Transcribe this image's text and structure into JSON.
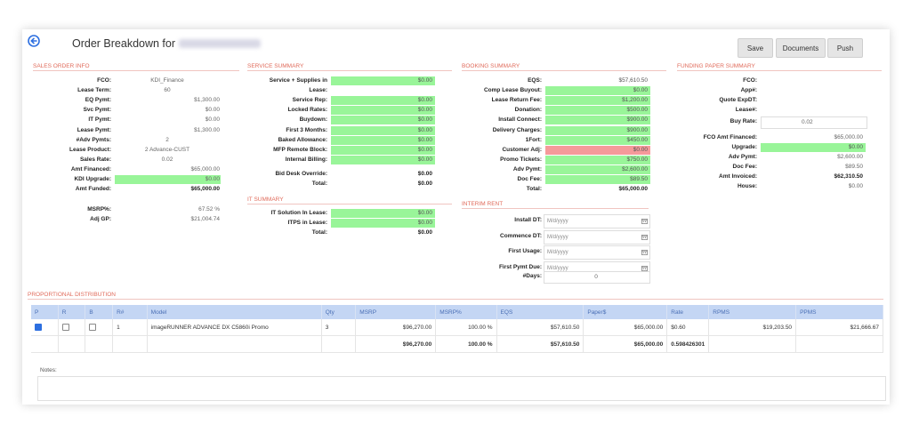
{
  "header": {
    "title": "Order Breakdown for",
    "save": "Save",
    "documents": "Documents",
    "push": "Push"
  },
  "sales_order": {
    "title": "SALES ORDER INFO",
    "rows": [
      {
        "label": "FCO:",
        "value": "KDI_Finance"
      },
      {
        "label": "Lease Term:",
        "value": "60"
      },
      {
        "label": "EQ Pymt:",
        "value": "$1,300.00"
      },
      {
        "label": "Svc Pymt:",
        "value": "$0.00"
      },
      {
        "label": "IT Pymt:",
        "value": "$0.00"
      },
      {
        "label": "Lease Pymt:",
        "value": "$1,300.00"
      },
      {
        "label": "#Adv Pymts:",
        "value": "2"
      },
      {
        "label": "Lease Product:",
        "value": "2 Advance-CUST"
      },
      {
        "label": "Sales Rate:",
        "value": "0.02"
      },
      {
        "label": "Amt Financed:",
        "value": "$65,000.00"
      },
      {
        "label": "KDI Upgrade:",
        "value": "$0.00"
      },
      {
        "label": "Amt Funded:",
        "value": "$65,000.00"
      }
    ],
    "msrp_label": "MSRP%:",
    "msrp_value": "67.52 %",
    "adjgp_label": "Adj GP:",
    "adjgp_value": "$21,004.74"
  },
  "service": {
    "title": "SERVICE SUMMARY",
    "rows": [
      {
        "label": "Service + Supplies in",
        "value": "$0.00"
      },
      {
        "label": "Lease:",
        "value": ""
      },
      {
        "label": "Service Rep:",
        "value": "$0.00"
      },
      {
        "label": "Locked Rates:",
        "value": "$0.00"
      },
      {
        "label": "Buydown:",
        "value": "$0.00"
      },
      {
        "label": "First 3 Months:",
        "value": "$0.00"
      },
      {
        "label": "Baked Allowance:",
        "value": "$0.00"
      },
      {
        "label": "MFP Remote Block:",
        "value": "$0.00"
      },
      {
        "label": "Internal Billing:",
        "value": "$0.00"
      }
    ],
    "bid_label": "Bid Desk Override:",
    "bid_value": "$0.00",
    "total_label": "Total:",
    "total_value": "$0.00"
  },
  "it": {
    "title": "IT SUMMARY",
    "rows": [
      {
        "label": "IT Solution In Lease:",
        "value": "$0.00"
      },
      {
        "label": "ITPS in Lease:",
        "value": "$0.00"
      },
      {
        "label": "Total:",
        "value": "$0.00"
      }
    ]
  },
  "booking": {
    "title": "BOOKING SUMMARY",
    "rows": [
      {
        "label": "EQS:",
        "value": "$57,610.50"
      },
      {
        "label": "Comp Lease Buyout:",
        "value": "$0.00"
      },
      {
        "label": "Lease Return Fee:",
        "value": "$1,200.00"
      },
      {
        "label": "Donation:",
        "value": "$500.00"
      },
      {
        "label": "Install Connect:",
        "value": "$900.00"
      },
      {
        "label": "Delivery Charges:",
        "value": "$900.00"
      },
      {
        "label": "1Fort:",
        "value": "$450.00"
      },
      {
        "label": "Customer Adj:",
        "value": "$0.00"
      },
      {
        "label": "Promo Tickets:",
        "value": "$750.00"
      },
      {
        "label": "Adv Pymt:",
        "value": "$2,600.00"
      },
      {
        "label": "Doc Fee:",
        "value": "$89.50"
      },
      {
        "label": "Total:",
        "value": "$65,000.00"
      }
    ]
  },
  "interim": {
    "title": "INTERIM RENT",
    "rows": [
      {
        "label": "Install DT:",
        "placeholder": "M/d/yyyy"
      },
      {
        "label": "Commence DT:",
        "placeholder": "M/d/yyyy"
      },
      {
        "label": "First Usage:",
        "placeholder": "M/d/yyyy"
      },
      {
        "label": "First Pymt Due:",
        "placeholder": "M/d/yyyy"
      }
    ],
    "days_label": "#Days:",
    "days_value": "0"
  },
  "funding": {
    "title": "FUNDING PAPER SUMMARY",
    "rows": [
      {
        "label": "FCO:",
        "value": ""
      },
      {
        "label": "App#:",
        "value": ""
      },
      {
        "label": "Quote ExpDT:",
        "value": ""
      },
      {
        "label": "Lease#:",
        "value": ""
      },
      {
        "label": "Buy Rate:",
        "value": "0.02"
      },
      {
        "label": "FCO Amt Financed:",
        "value": "$65,000.00"
      },
      {
        "label": "Upgrade:",
        "value": "$0.00"
      },
      {
        "label": "Adv Pymt:",
        "value": "$2,600.00"
      },
      {
        "label": "Doc Fee:",
        "value": "$89.50"
      },
      {
        "label": "Amt Invoiced:",
        "value": "$62,310.50"
      },
      {
        "label": "House:",
        "value": "$0.00"
      }
    ]
  },
  "proportional": {
    "title": "PROPORTIONAL DISTRIBUTION",
    "columns": [
      "P",
      "R",
      "B",
      "R#",
      "Model",
      "Qty",
      "MSRP",
      "MSRP%",
      "EQS",
      "Paper$",
      "Rate",
      "RPMS",
      "PPMS"
    ],
    "row": {
      "rnum": "1",
      "model": "imageRUNNER ADVANCE DX C5860i Promo",
      "qty": "3",
      "msrp": "$96,270.00",
      "msrppct": "100.00 %",
      "eqs": "$57,610.50",
      "paper": "$65,000.00",
      "rate": "$0.60",
      "rpms": "$19,203.50",
      "ppms": "$21,666.67"
    },
    "totals": {
      "msrp": "$96,270.00",
      "msrppct": "100.00 %",
      "eqs": "$57,610.50",
      "paper": "$65,000.00",
      "rate": "0.598426301"
    }
  },
  "notes": {
    "label": "Notes:"
  }
}
